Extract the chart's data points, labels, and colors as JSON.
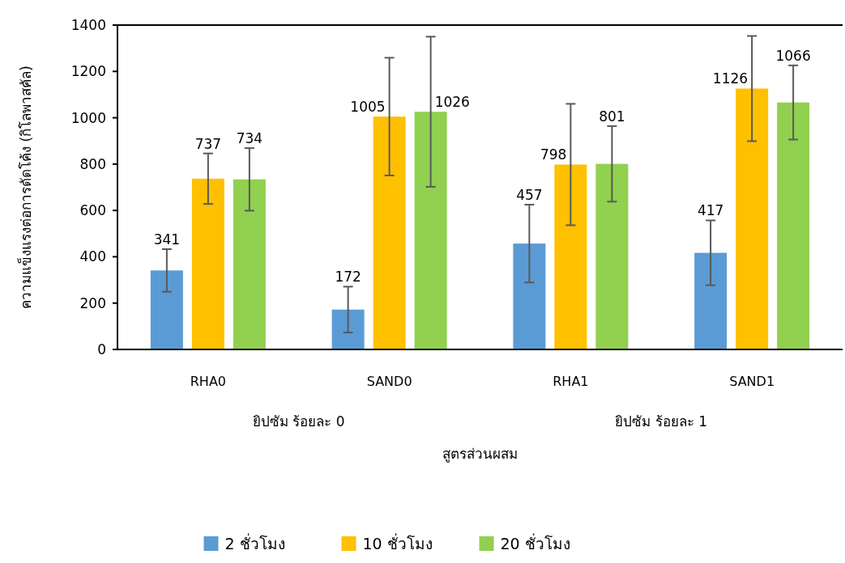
{
  "chart_data": {
    "type": "bar",
    "ylabel": "ความแข็งแรงต่อการดัดโค้ง (กิโลพาสคัล)",
    "xlabel": "สูตรส่วนผสม",
    "categories": [
      "RHA0",
      "SAND0",
      "RHA1",
      "SAND1"
    ],
    "series": [
      {
        "name": "2 ชั่วโมง",
        "color": "#5b9bd5",
        "values": [
          341,
          172,
          457,
          417
        ],
        "errors": [
          92,
          99,
          168,
          140
        ]
      },
      {
        "name": "10 ชั่วโมง",
        "color": "#ffc000",
        "values": [
          737,
          1005,
          798,
          1126
        ],
        "errors": [
          109,
          254,
          262,
          227
        ]
      },
      {
        "name": "20 ชั่วโมง",
        "color": "#92d050",
        "values": [
          734,
          1026,
          801,
          1066
        ],
        "errors": [
          135,
          324,
          163,
          160
        ]
      }
    ],
    "ylim": [
      0,
      1400
    ],
    "yticks": [
      0,
      200,
      400,
      600,
      800,
      1000,
      1200,
      1400
    ],
    "grid": false,
    "legend": "bottom",
    "data_labels": true,
    "annotations": [
      "ยิปซัม ร้อยละ 0",
      "ยิปซัม ร้อยละ 1"
    ]
  }
}
